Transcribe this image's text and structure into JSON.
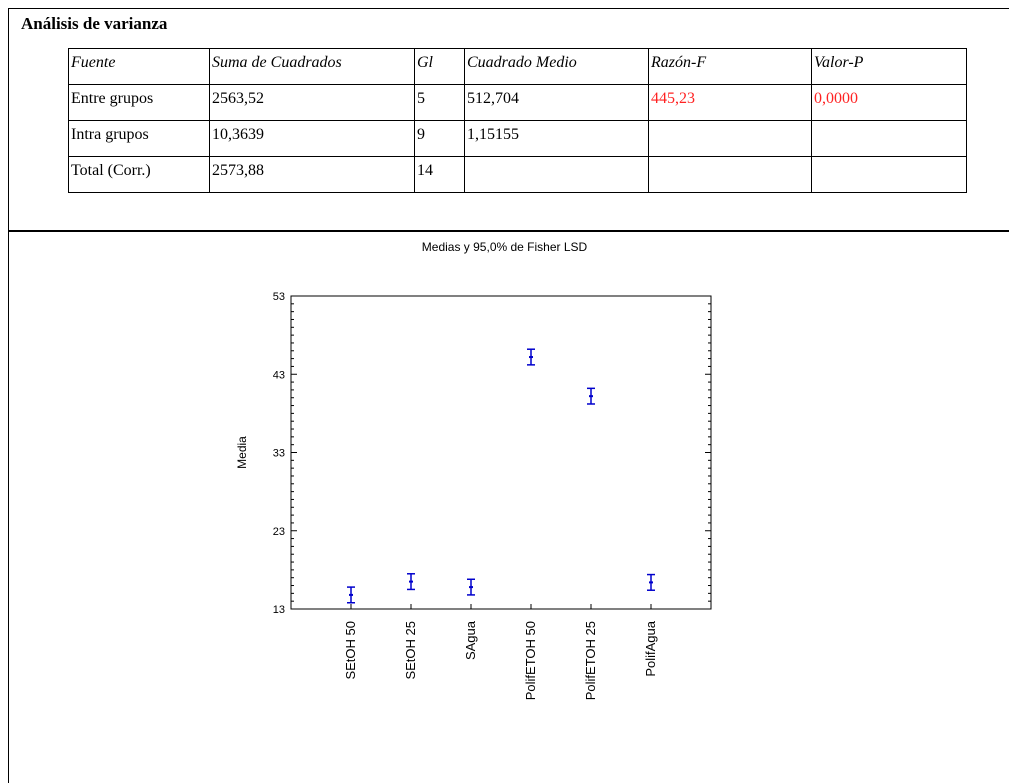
{
  "anova": {
    "title": "Análisis de varianza",
    "headers": [
      "Fuente",
      "Suma de Cuadrados",
      "Gl",
      "Cuadrado Medio",
      "Razón-F",
      "Valor-P"
    ],
    "rows": [
      [
        "Entre grupos",
        "2563,52",
        "5",
        "512,704",
        "445,23",
        "0,0000"
      ],
      [
        "Intra grupos",
        "10,3639",
        "9",
        "1,15155",
        "",
        ""
      ],
      [
        "Total (Corr.)",
        "2573,88",
        "14",
        "",
        "",
        ""
      ]
    ],
    "highlight_color": "#ff2222"
  },
  "chart_data": {
    "type": "scatter",
    "title": "Medias y 95,0% de Fisher LSD",
    "xlabel": "",
    "ylabel": "Media",
    "ylim": [
      13,
      53
    ],
    "yticks": [
      "13",
      "23",
      "33",
      "43",
      "53"
    ],
    "categories": [
      "SEtOH 50",
      "SEtOH 25",
      "SAgua",
      "PolifETOH 50",
      "PolifETOH 25",
      "PolifAgua"
    ],
    "means": [
      14.8,
      16.5,
      15.8,
      45.2,
      40.2,
      16.4
    ],
    "lower": [
      13.8,
      15.5,
      14.8,
      44.2,
      39.2,
      15.4
    ],
    "upper": [
      15.8,
      17.5,
      16.8,
      46.2,
      41.2,
      17.4
    ],
    "marker_color": "#0000cc",
    "grid": false
  }
}
